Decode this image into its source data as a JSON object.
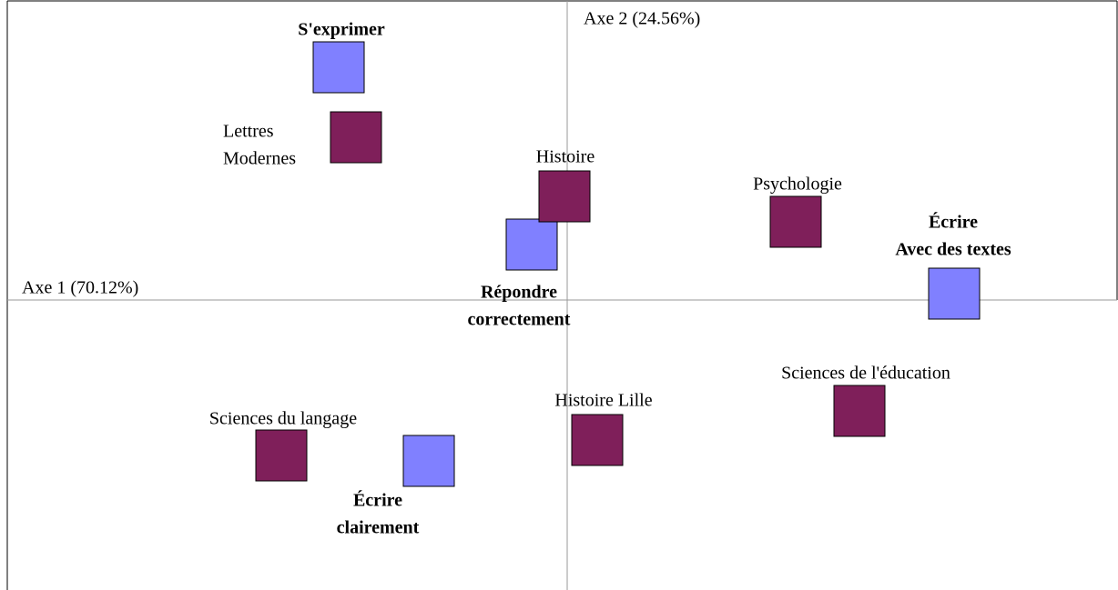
{
  "chart_data": {
    "type": "scatter",
    "xlabel": "Axe 1 (70.12%)",
    "ylabel": "Axe 2 (24.56%)",
    "xlim": [
      -6.15,
      6.04
    ],
    "ylim": [
      -3.19,
      3.29
    ],
    "series": [
      {
        "color": "#8080ff",
        "bold": true,
        "x": [
          -2.51,
          -0.39,
          4.25,
          -1.52
        ],
        "y": [
          2.56,
          0.61,
          0.07,
          -1.77
        ],
        "labels": [
          [
            "S'exprimer"
          ],
          [
            "Répondre",
            "correctement"
          ],
          [
            "Écrire",
            "Avec des textes"
          ],
          [
            "Écrire",
            "clairement"
          ]
        ]
      },
      {
        "color": "#7f1f5a",
        "bold": false,
        "x": [
          -2.32,
          -0.03,
          2.51,
          3.21,
          0.33,
          -3.14
        ],
        "y": [
          1.79,
          1.14,
          0.86,
          -1.22,
          -1.54,
          -1.71
        ],
        "labels": [
          [
            "Lettres",
            "Modernes"
          ],
          [
            "Histoire"
          ],
          [
            "Psychologie"
          ],
          [
            "Sciences de l'éducation"
          ],
          [
            "Histoire Lille"
          ],
          [
            "Sciences du langage"
          ]
        ]
      }
    ]
  }
}
